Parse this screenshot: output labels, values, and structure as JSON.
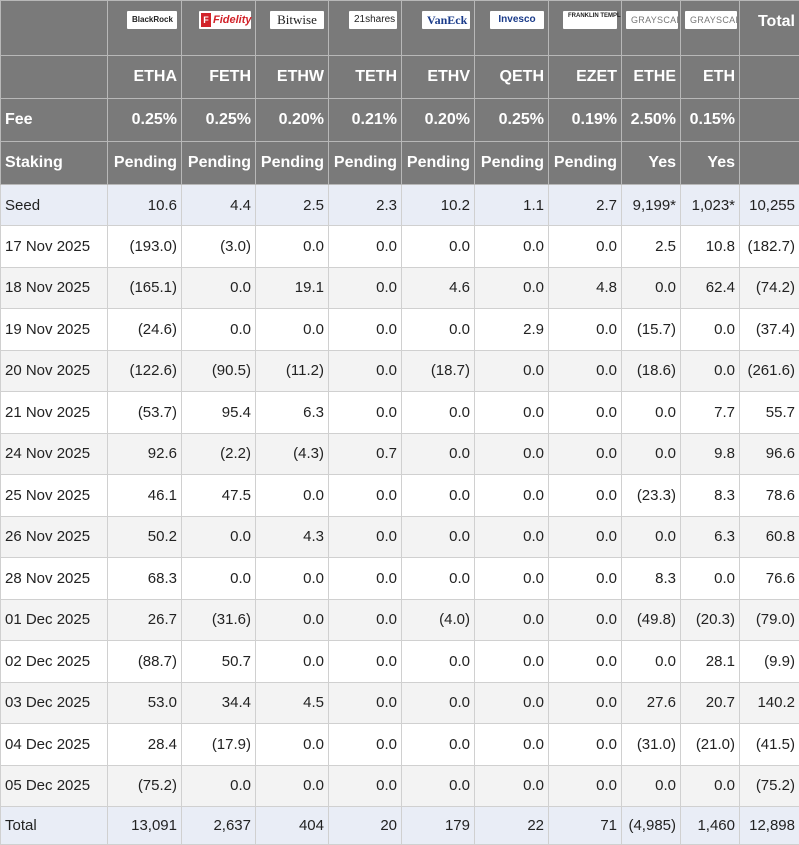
{
  "table": {
    "issuers": [
      {
        "logo_icon": "blackrock-logo-icon",
        "logo_text": "BlackRock",
        "ticker": "ETHA",
        "fee": "0.25%",
        "staking": "Pending"
      },
      {
        "logo_icon": "fidelity-logo-icon",
        "logo_text": "Fidelity",
        "ticker": "FETH",
        "fee": "0.25%",
        "staking": "Pending"
      },
      {
        "logo_icon": "bitwise-logo-icon",
        "logo_text": "Bitwise",
        "ticker": "ETHW",
        "fee": "0.20%",
        "staking": "Pending"
      },
      {
        "logo_icon": "21shares-logo-icon",
        "logo_text": "21shares",
        "ticker": "TETH",
        "fee": "0.21%",
        "staking": "Pending"
      },
      {
        "logo_icon": "vaneck-logo-icon",
        "logo_text": "VanEck",
        "ticker": "ETHV",
        "fee": "0.20%",
        "staking": "Pending"
      },
      {
        "logo_icon": "invesco-logo-icon",
        "logo_text": "Invesco",
        "ticker": "QETH",
        "fee": "0.25%",
        "staking": "Pending"
      },
      {
        "logo_icon": "franklin-templeton-logo-icon",
        "logo_text": "FRANKLIN TEMPLETON",
        "ticker": "EZET",
        "fee": "0.19%",
        "staking": "Pending"
      },
      {
        "logo_icon": "grayscale-logo-icon",
        "logo_text": "GRAYSCALE",
        "ticker": "ETHE",
        "fee": "2.50%",
        "staking": "Yes"
      },
      {
        "logo_icon": "grayscale-logo-icon",
        "logo_text": "GRAYSCALE",
        "ticker": "ETH",
        "fee": "0.15%",
        "staking": "Yes"
      }
    ],
    "total_header": "Total",
    "fee_label": "Fee",
    "staking_label": "Staking",
    "seed": {
      "label": "Seed",
      "values": [
        "10.6",
        "4.4",
        "2.5",
        "2.3",
        "10.2",
        "1.1",
        "2.7",
        "9,199*",
        "1,023*",
        "10,255"
      ]
    },
    "rows": [
      {
        "date": "17 Nov 2025",
        "values": [
          "(193.0)",
          "(3.0)",
          "0.0",
          "0.0",
          "0.0",
          "0.0",
          "0.0",
          "2.5",
          "10.8",
          "(182.7)"
        ]
      },
      {
        "date": "18 Nov 2025",
        "values": [
          "(165.1)",
          "0.0",
          "19.1",
          "0.0",
          "4.6",
          "0.0",
          "4.8",
          "0.0",
          "62.4",
          "(74.2)"
        ]
      },
      {
        "date": "19 Nov 2025",
        "values": [
          "(24.6)",
          "0.0",
          "0.0",
          "0.0",
          "0.0",
          "2.9",
          "0.0",
          "(15.7)",
          "0.0",
          "(37.4)"
        ]
      },
      {
        "date": "20 Nov 2025",
        "values": [
          "(122.6)",
          "(90.5)",
          "(11.2)",
          "0.0",
          "(18.7)",
          "0.0",
          "0.0",
          "(18.6)",
          "0.0",
          "(261.6)"
        ]
      },
      {
        "date": "21 Nov 2025",
        "values": [
          "(53.7)",
          "95.4",
          "6.3",
          "0.0",
          "0.0",
          "0.0",
          "0.0",
          "0.0",
          "7.7",
          "55.7"
        ]
      },
      {
        "date": "24 Nov 2025",
        "values": [
          "92.6",
          "(2.2)",
          "(4.3)",
          "0.7",
          "0.0",
          "0.0",
          "0.0",
          "0.0",
          "9.8",
          "96.6"
        ]
      },
      {
        "date": "25 Nov 2025",
        "values": [
          "46.1",
          "47.5",
          "0.0",
          "0.0",
          "0.0",
          "0.0",
          "0.0",
          "(23.3)",
          "8.3",
          "78.6"
        ]
      },
      {
        "date": "26 Nov 2025",
        "values": [
          "50.2",
          "0.0",
          "4.3",
          "0.0",
          "0.0",
          "0.0",
          "0.0",
          "0.0",
          "6.3",
          "60.8"
        ]
      },
      {
        "date": "28 Nov 2025",
        "values": [
          "68.3",
          "0.0",
          "0.0",
          "0.0",
          "0.0",
          "0.0",
          "0.0",
          "8.3",
          "0.0",
          "76.6"
        ]
      },
      {
        "date": "01 Dec 2025",
        "values": [
          "26.7",
          "(31.6)",
          "0.0",
          "0.0",
          "(4.0)",
          "0.0",
          "0.0",
          "(49.8)",
          "(20.3)",
          "(79.0)"
        ]
      },
      {
        "date": "02 Dec 2025",
        "values": [
          "(88.7)",
          "50.7",
          "0.0",
          "0.0",
          "0.0",
          "0.0",
          "0.0",
          "0.0",
          "28.1",
          "(9.9)"
        ]
      },
      {
        "date": "03 Dec 2025",
        "values": [
          "53.0",
          "34.4",
          "4.5",
          "0.0",
          "0.0",
          "0.0",
          "0.0",
          "27.6",
          "20.7",
          "140.2"
        ]
      },
      {
        "date": "04 Dec 2025",
        "values": [
          "28.4",
          "(17.9)",
          "0.0",
          "0.0",
          "0.0",
          "0.0",
          "0.0",
          "(31.0)",
          "(21.0)",
          "(41.5)"
        ]
      },
      {
        "date": "05 Dec 2025",
        "values": [
          "(75.2)",
          "0.0",
          "0.0",
          "0.0",
          "0.0",
          "0.0",
          "0.0",
          "0.0",
          "0.0",
          "(75.2)"
        ]
      }
    ],
    "total": {
      "label": "Total",
      "values": [
        "13,091",
        "2,637",
        "404",
        "20",
        "179",
        "22",
        "71",
        "(4,985)",
        "1,460",
        "12,898"
      ]
    }
  },
  "colors": {
    "header_bg": "#7a7a7a",
    "negative": "#e0181e",
    "band_bg": "#e9edf6",
    "alt_row_bg": "#f3f3f3"
  }
}
